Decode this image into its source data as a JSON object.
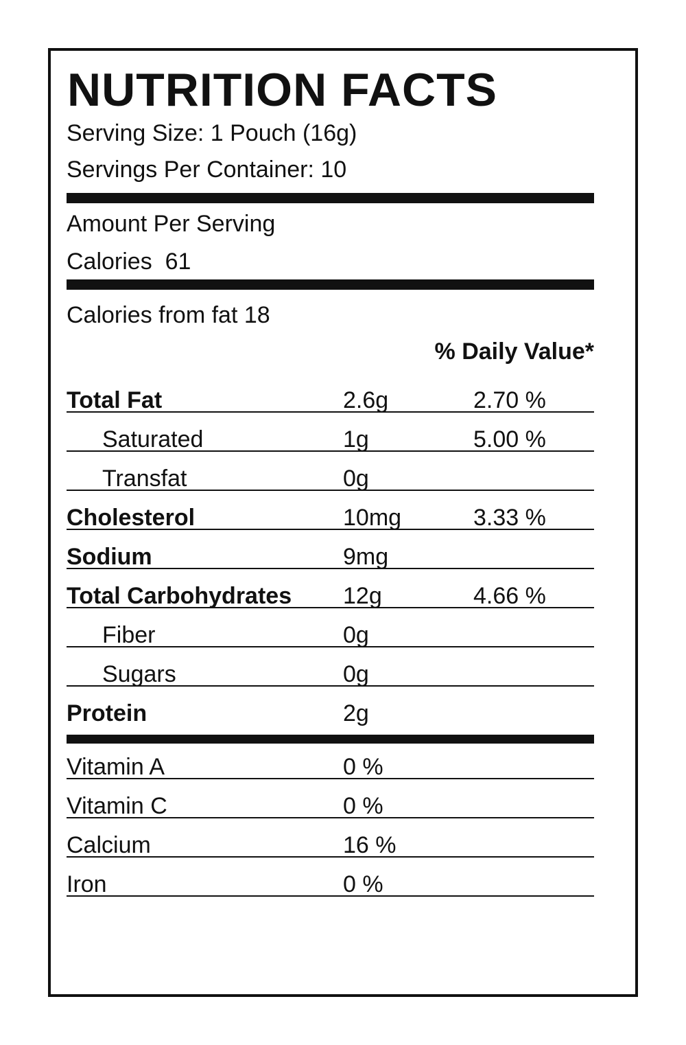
{
  "title": "NUTRITION FACTS",
  "serving_size": "Serving Size: 1 Pouch (16g)",
  "servings_per_container": "Servings Per Container: 10",
  "amount_per_serving": "Amount Per Serving",
  "calories": "Calories  61",
  "calories_from_fat": "Calories from fat 18",
  "daily_value_header": "% Daily Value*",
  "nutrients": [
    {
      "name": "Total Fat",
      "amount": "2.6g",
      "daily_value": "2.70 %",
      "bold": true,
      "indent": false
    },
    {
      "name": "Saturated",
      "amount": "1g",
      "daily_value": "5.00 %",
      "bold": false,
      "indent": true
    },
    {
      "name": "Transfat",
      "amount": "0g",
      "bold": false,
      "indent": true
    },
    {
      "name": "Cholesterol",
      "amount": "10mg",
      "daily_value": "3.33 %",
      "bold": true,
      "indent": false
    },
    {
      "name": "Sodium",
      "amount": "9mg",
      "bold": true,
      "indent": false
    },
    {
      "name": "Total Carbohydrates",
      "amount": "12g",
      "daily_value": "4.66 %",
      "bold": true,
      "indent": false
    },
    {
      "name": "Fiber",
      "amount": "0g",
      "bold": false,
      "indent": true
    },
    {
      "name": "Sugars",
      "amount": "0g",
      "bold": false,
      "indent": true
    },
    {
      "name": "Protein",
      "amount": "2g",
      "bold": true,
      "indent": false
    }
  ],
  "vitamins": [
    {
      "name": "Vitamin A",
      "value": "0 %"
    },
    {
      "name": "Vitamin C",
      "value": "0 %"
    },
    {
      "name": "Calcium",
      "value": "16 %"
    },
    {
      "name": "Iron",
      "value": "0 %"
    }
  ]
}
